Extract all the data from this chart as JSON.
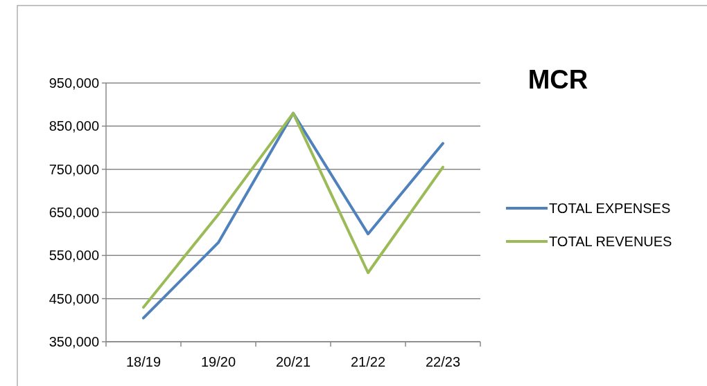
{
  "chart_data": {
    "type": "line",
    "title": "MCR",
    "categories": [
      "18/19",
      "19/20",
      "20/21",
      "21/22",
      "22/23"
    ],
    "series": [
      {
        "name": "TOTAL EXPENSES",
        "color": "#4f81bd",
        "values": [
          405000,
          580000,
          880000,
          600000,
          810000
        ]
      },
      {
        "name": "TOTAL REVENUES",
        "color": "#9bbb59",
        "values": [
          430000,
          645000,
          880000,
          510000,
          755000
        ]
      }
    ],
    "ylim": [
      350000,
      950000
    ],
    "yticks": [
      {
        "value": 350000,
        "label": "350,000"
      },
      {
        "value": 450000,
        "label": "450,000"
      },
      {
        "value": 550000,
        "label": "550,000"
      },
      {
        "value": 650000,
        "label": "650,000"
      },
      {
        "value": 750000,
        "label": "750,000"
      },
      {
        "value": 850000,
        "label": "850,000"
      },
      {
        "value": 950000,
        "label": "950,000"
      }
    ],
    "grid": "y",
    "legend": "right",
    "marker": "none",
    "line_style": "solid"
  }
}
